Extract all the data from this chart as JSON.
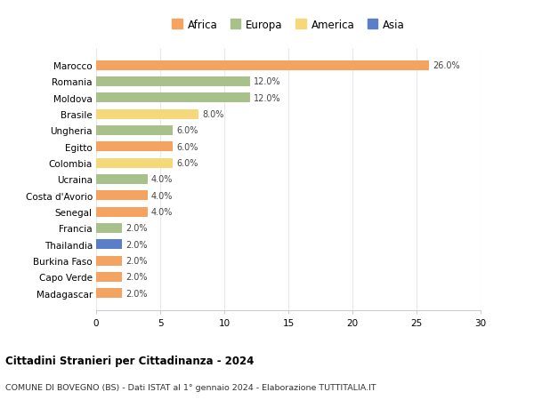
{
  "countries": [
    "Marocco",
    "Romania",
    "Moldova",
    "Brasile",
    "Ungheria",
    "Egitto",
    "Colombia",
    "Ucraina",
    "Costa d'Avorio",
    "Senegal",
    "Francia",
    "Thailandia",
    "Burkina Faso",
    "Capo Verde",
    "Madagascar"
  ],
  "values": [
    26.0,
    12.0,
    12.0,
    8.0,
    6.0,
    6.0,
    6.0,
    4.0,
    4.0,
    4.0,
    2.0,
    2.0,
    2.0,
    2.0,
    2.0
  ],
  "continents": [
    "Africa",
    "Europa",
    "Europa",
    "America",
    "Europa",
    "Africa",
    "America",
    "Europa",
    "Africa",
    "Africa",
    "Europa",
    "Asia",
    "Africa",
    "Africa",
    "Africa"
  ],
  "colors": {
    "Africa": "#F4A460",
    "Europa": "#A8C08A",
    "America": "#F5D87A",
    "Asia": "#5B7EC9"
  },
  "legend_order": [
    "Africa",
    "Europa",
    "America",
    "Asia"
  ],
  "title1": "Cittadini Stranieri per Cittadinanza - 2024",
  "title2": "COMUNE DI BOVEGNO (BS) - Dati ISTAT al 1° gennaio 2024 - Elaborazione TUTTITALIA.IT",
  "xlim": [
    0,
    30
  ],
  "xticks": [
    0,
    5,
    10,
    15,
    20,
    25,
    30
  ],
  "bg_color": "#ffffff",
  "grid_color": "#e8e8e8"
}
